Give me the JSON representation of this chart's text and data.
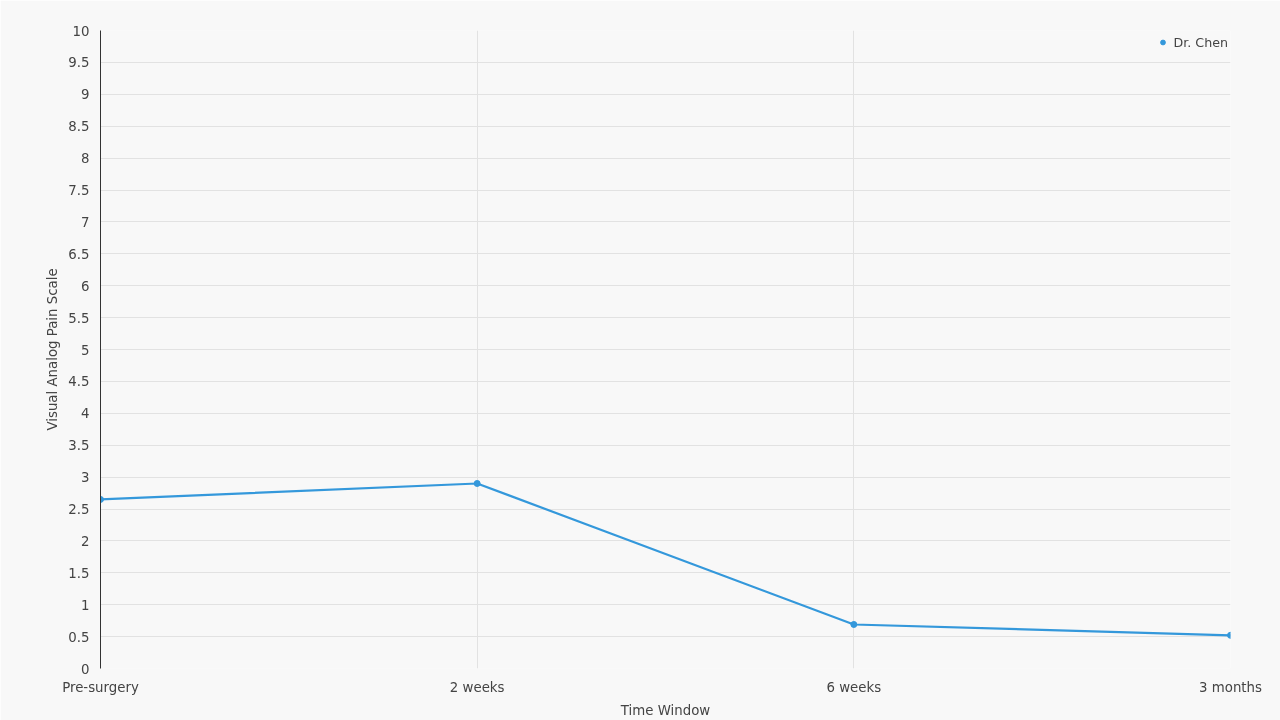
{
  "chart_data": {
    "type": "line",
    "xlabel": "Time Window",
    "ylabel": "Visual Analog Pain Scale",
    "categories": [
      "Pre-surgery",
      "2 weeks",
      "6 weeks",
      "3 months"
    ],
    "series": [
      {
        "name": "Dr. Chen",
        "color": "#3498db",
        "values": [
          2.65,
          2.9,
          0.69,
          0.52
        ]
      }
    ],
    "ylim": [
      0,
      10
    ],
    "yticks": [
      0,
      0.5,
      1,
      1.5,
      2,
      2.5,
      3,
      3.5,
      4,
      4.5,
      5,
      5.5,
      6,
      6.5,
      7,
      7.5,
      8,
      8.5,
      9,
      9.5,
      10
    ],
    "grid": true,
    "legend": "top right",
    "marker": "circle",
    "line_style": "solid"
  }
}
